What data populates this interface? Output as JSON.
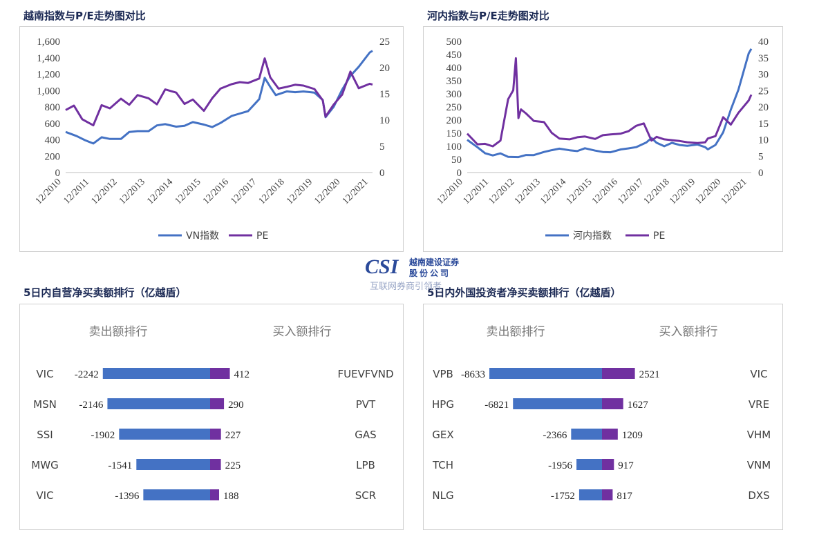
{
  "colors": {
    "index": "#4472c4",
    "pe": "#7030a0",
    "sell": "#4472c4",
    "buy": "#7030a0"
  },
  "panels": {
    "vn_chart_title": "越南指数与P/E走势图对比",
    "hn_chart_title": "河内指数与P/E走势图对比",
    "prop_title": "5日内自营净买卖额排行（亿越盾）",
    "foreign_title": "5日内外国投资者净买卖额排行（亿越盾）"
  },
  "watermark": {
    "brand": "CSI",
    "company_line1": "越南建设证券",
    "company_line2": "股 份 公 司",
    "caption": "互联网券商引领者"
  },
  "chart_data": [
    {
      "type": "line",
      "title": "越南指数与P/E走势图对比",
      "x_tick_labels": [
        "12/2010",
        "12/2011",
        "12/2012",
        "12/2013",
        "12/2014",
        "12/2015",
        "12/2016",
        "12/2017",
        "12/2018",
        "12/2019",
        "12/2020",
        "12/2021"
      ],
      "y_left": {
        "range": [
          0,
          1600
        ],
        "ticks": [
          "0",
          "200",
          "400",
          "600",
          "800",
          "1,000",
          "1,200",
          "1,400",
          "1,600"
        ]
      },
      "y_right": {
        "range": [
          0,
          25
        ],
        "ticks": [
          "0",
          "5",
          "10",
          "15",
          "20",
          "25"
        ]
      },
      "legend_position": "bottom",
      "series": [
        {
          "name": "VN指数",
          "axis": "left",
          "color": "#4472c4",
          "x": [
            2010.9,
            2011.3,
            2011.6,
            2011.9,
            2012.2,
            2012.5,
            2012.9,
            2013.2,
            2013.5,
            2013.9,
            2014.2,
            2014.5,
            2014.9,
            2015.2,
            2015.5,
            2015.9,
            2016.2,
            2016.5,
            2016.9,
            2017.2,
            2017.5,
            2017.9,
            2018.1,
            2018.3,
            2018.5,
            2018.9,
            2019.2,
            2019.5,
            2019.9,
            2020.2,
            2020.3,
            2020.6,
            2020.9,
            2021.2,
            2021.5,
            2021.9,
            2022.0
          ],
          "y": [
            480,
            440,
            400,
            370,
            420,
            410,
            420,
            480,
            500,
            510,
            590,
            580,
            560,
            580,
            600,
            580,
            560,
            620,
            680,
            720,
            760,
            880,
            1150,
            1050,
            960,
            980,
            980,
            1000,
            960,
            880,
            680,
            820,
            1000,
            1180,
            1300,
            1450,
            1480
          ]
        },
        {
          "name": "PE",
          "axis": "right",
          "color": "#7030a0",
          "x": [
            2010.9,
            2011.2,
            2011.5,
            2011.9,
            2012.2,
            2012.5,
            2012.9,
            2013.2,
            2013.5,
            2013.9,
            2014.2,
            2014.5,
            2014.9,
            2015.2,
            2015.5,
            2015.9,
            2016.2,
            2016.5,
            2016.9,
            2017.2,
            2017.5,
            2017.9,
            2018.1,
            2018.3,
            2018.6,
            2018.9,
            2019.2,
            2019.5,
            2019.9,
            2020.2,
            2020.3,
            2020.6,
            2020.9,
            2021.2,
            2021.5,
            2021.9,
            2022.0
          ],
          "y": [
            12,
            13,
            10,
            9,
            13,
            12,
            14,
            13,
            15,
            14,
            13,
            16,
            15,
            13,
            14,
            12,
            14,
            16,
            17,
            17,
            17,
            18,
            22,
            18,
            16,
            16.5,
            16.5,
            16.5,
            16,
            14,
            10.5,
            13,
            15,
            19,
            16,
            17,
            17
          ]
        }
      ]
    },
    {
      "type": "line",
      "title": "河内指数与P/E走势图对比",
      "x_tick_labels": [
        "12/2010",
        "12/2011",
        "12/2012",
        "12/2013",
        "12/2014",
        "12/2015",
        "12/2016",
        "12/2017",
        "12/2018",
        "12/2019",
        "12/2020",
        "12/2021"
      ],
      "y_left": {
        "range": [
          0,
          500
        ],
        "ticks": [
          "0",
          "50",
          "100",
          "150",
          "200",
          "250",
          "300",
          "350",
          "400",
          "450",
          "500"
        ]
      },
      "y_right": {
        "range": [
          0,
          40
        ],
        "ticks": [
          "0",
          "5",
          "10",
          "15",
          "20",
          "25",
          "30",
          "35",
          "40"
        ]
      },
      "legend_position": "bottom",
      "series": [
        {
          "name": "河内指数",
          "axis": "left",
          "color": "#4472c4",
          "x": [
            2010.9,
            2011.3,
            2011.6,
            2011.9,
            2012.2,
            2012.5,
            2012.9,
            2013.2,
            2013.5,
            2013.9,
            2014.2,
            2014.5,
            2014.9,
            2015.2,
            2015.5,
            2015.9,
            2016.2,
            2016.5,
            2016.9,
            2017.2,
            2017.5,
            2017.9,
            2018.1,
            2018.3,
            2018.6,
            2018.9,
            2019.2,
            2019.5,
            2019.9,
            2020.2,
            2020.3,
            2020.6,
            2020.9,
            2021.2,
            2021.5,
            2021.9,
            2022.0
          ],
          "y": [
            120,
            95,
            75,
            70,
            70,
            60,
            62,
            62,
            65,
            80,
            90,
            88,
            85,
            85,
            88,
            82,
            80,
            82,
            85,
            92,
            100,
            110,
            130,
            115,
            105,
            110,
            105,
            105,
            102,
            95,
            90,
            110,
            150,
            240,
            320,
            450,
            470
          ]
        },
        {
          "name": "PE",
          "axis": "right",
          "color": "#7030a0",
          "x": [
            2010.9,
            2011.3,
            2011.6,
            2011.9,
            2012.2,
            2012.5,
            2012.7,
            2012.8,
            2012.9,
            2013.0,
            2013.2,
            2013.5,
            2013.9,
            2014.2,
            2014.5,
            2014.9,
            2015.2,
            2015.5,
            2015.9,
            2016.2,
            2016.5,
            2016.9,
            2017.2,
            2017.5,
            2017.8,
            2018.1,
            2018.3,
            2018.6,
            2018.9,
            2019.2,
            2019.5,
            2019.9,
            2020.2,
            2020.3,
            2020.6,
            2020.9,
            2021.2,
            2021.5,
            2021.9,
            2022.0
          ],
          "y": [
            12,
            9,
            8.5,
            8,
            10,
            22,
            25,
            35,
            17,
            19,
            18,
            16,
            15,
            12,
            10.5,
            10.5,
            10.5,
            11,
            10.5,
            11,
            11.5,
            12,
            13,
            14,
            15,
            10,
            10.5,
            10,
            10,
            10,
            9,
            9,
            9.5,
            10,
            11,
            17,
            15,
            18,
            22,
            24
          ]
        }
      ]
    },
    {
      "type": "bar",
      "title": "5日内自营净买卖额排行（亿越盾）",
      "sell_header": "卖出额排行",
      "buy_header": "买入额排行",
      "range": 2600,
      "sell": {
        "tickers": [
          "VIC",
          "MSN",
          "SSI",
          "MWG",
          "VIC"
        ],
        "values": [
          -2242,
          -2146,
          -1902,
          -1541,
          -1396
        ]
      },
      "buy": {
        "tickers": [
          "FUEVFVND",
          "PVT",
          "GAS",
          "LPB",
          "SCR"
        ],
        "values": [
          412,
          290,
          227,
          225,
          188
        ]
      }
    },
    {
      "type": "bar",
      "title": "5日内外国投资者净买卖额排行（亿越盾）",
      "sell_header": "卖出额排行",
      "buy_header": "买入额排行",
      "range": 9800,
      "sell": {
        "tickers": [
          "VPB",
          "HPG",
          "GEX",
          "TCH",
          "NLG"
        ],
        "values": [
          -8633,
          -6821,
          -2366,
          -1956,
          -1752
        ]
      },
      "buy": {
        "tickers": [
          "VIC",
          "VRE",
          "VHM",
          "VNM",
          "DXS"
        ],
        "values": [
          2521,
          1627,
          1209,
          917,
          817
        ]
      }
    }
  ]
}
